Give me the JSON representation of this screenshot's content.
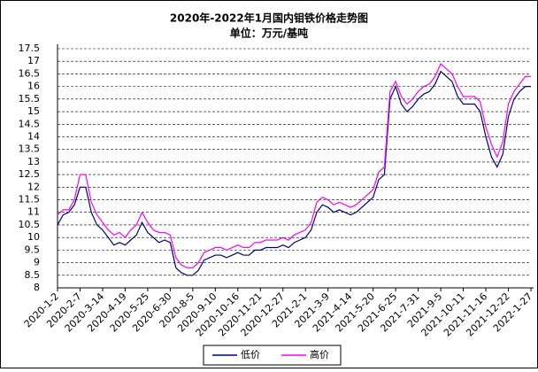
{
  "chart_data": {
    "type": "line",
    "title": "2020年-2022年1月国内钼铁价格走势图",
    "subtitle": "单位：万元/基吨",
    "categories": [
      "2020-1-2",
      null,
      null,
      null,
      "2020-2-7",
      null,
      null,
      null,
      "2020-3-14",
      null,
      null,
      null,
      "2020-4-19",
      null,
      null,
      null,
      "2020-5-25",
      null,
      null,
      null,
      "2020-6-30",
      null,
      null,
      null,
      "2020-8-5",
      null,
      null,
      null,
      "2020-9-10",
      null,
      null,
      null,
      "2020-10-16",
      null,
      null,
      null,
      "2020-11-21",
      null,
      null,
      null,
      "2020-12-27",
      null,
      null,
      null,
      "2021-2-1",
      null,
      null,
      null,
      "2021-3-9",
      null,
      null,
      null,
      "2021-4-14",
      null,
      null,
      null,
      "2021-5-20",
      null,
      null,
      null,
      "2021-6-25",
      null,
      null,
      null,
      "2021-7-31",
      null,
      null,
      null,
      "2021-9-5",
      null,
      null,
      null,
      "2021-10-11",
      null,
      null,
      null,
      "2021-11-16",
      null,
      null,
      null,
      "2021-12-22",
      null,
      null,
      null,
      "2022-1-27"
    ],
    "series": [
      {
        "name": "低价",
        "color": "#000080",
        "values": [
          10.5,
          10.9,
          11.0,
          11.3,
          12.0,
          12.0,
          11.0,
          10.5,
          10.3,
          10.0,
          9.7,
          9.8,
          9.7,
          9.9,
          10.1,
          10.6,
          10.2,
          10.0,
          9.8,
          9.9,
          9.8,
          8.8,
          8.6,
          8.5,
          8.5,
          8.7,
          9.1,
          9.2,
          9.3,
          9.3,
          9.2,
          9.3,
          9.4,
          9.3,
          9.3,
          9.5,
          9.5,
          9.6,
          9.6,
          9.6,
          9.7,
          9.6,
          9.8,
          9.9,
          10.0,
          10.3,
          11.0,
          11.3,
          11.2,
          11.0,
          11.1,
          11.0,
          10.9,
          11.0,
          11.2,
          11.4,
          11.6,
          12.3,
          12.5,
          15.5,
          16.0,
          15.3,
          15.0,
          15.2,
          15.5,
          15.7,
          15.8,
          16.1,
          16.6,
          16.4,
          16.2,
          15.6,
          15.3,
          15.3,
          15.3,
          15.0,
          14.0,
          13.2,
          12.8,
          13.3,
          14.8,
          15.5,
          15.8,
          16.0,
          16.0
        ]
      },
      {
        "name": "高价",
        "color": "#ff00ff",
        "values": [
          10.9,
          11.1,
          11.1,
          11.5,
          12.5,
          12.5,
          11.4,
          10.9,
          10.6,
          10.3,
          10.1,
          10.2,
          10.0,
          10.3,
          10.5,
          11.0,
          10.6,
          10.3,
          10.2,
          10.2,
          10.1,
          9.2,
          8.9,
          8.8,
          8.8,
          9.0,
          9.4,
          9.5,
          9.6,
          9.6,
          9.5,
          9.6,
          9.7,
          9.6,
          9.6,
          9.8,
          9.8,
          9.9,
          9.9,
          9.9,
          10.0,
          9.9,
          10.1,
          10.2,
          10.3,
          10.6,
          11.4,
          11.6,
          11.5,
          11.3,
          11.4,
          11.3,
          11.2,
          11.3,
          11.5,
          11.7,
          11.9,
          12.6,
          12.8,
          15.8,
          16.2,
          15.6,
          15.3,
          15.5,
          15.8,
          16.0,
          16.1,
          16.4,
          16.9,
          16.7,
          16.5,
          16.0,
          15.6,
          15.6,
          15.6,
          15.4,
          14.4,
          13.7,
          13.2,
          13.8,
          15.3,
          15.8,
          16.1,
          16.4,
          16.4
        ]
      }
    ],
    "ylim": [
      8,
      17.5
    ],
    "yticks": [
      8,
      8.5,
      9,
      9.5,
      10,
      10.5,
      11,
      11.5,
      12,
      12.5,
      13,
      13.5,
      14,
      14.5,
      15,
      15.5,
      16,
      16.5,
      17,
      17.5
    ],
    "grid": true
  }
}
